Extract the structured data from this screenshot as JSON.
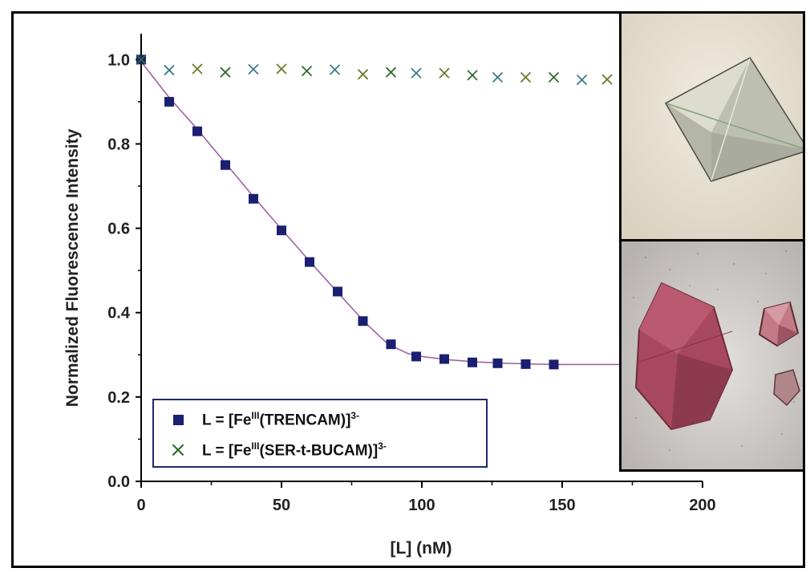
{
  "chart_data": {
    "type": "scatter",
    "xlabel": "[L] (nM)",
    "ylabel": "Normalized Fluorescence Intensity",
    "xlim": [
      0,
      200
    ],
    "ylim": [
      0.0,
      1.05
    ],
    "xticks": [
      "0",
      "50",
      "100",
      "150",
      "200"
    ],
    "yticks": [
      "0.0",
      "0.2",
      "0.4",
      "0.6",
      "0.8",
      "1.0"
    ],
    "legend_position": "bottom-left",
    "series": [
      {
        "legend_prefix": "L = [Fe",
        "legend_sup1": "III",
        "legend_mid": "(TRENCAM)]",
        "legend_sup2": "3-",
        "marker": "square",
        "color": "#1a1f72",
        "x": [
          0,
          10,
          20,
          30,
          40,
          50,
          60,
          70,
          79,
          89,
          98,
          108,
          118,
          127,
          137,
          147
        ],
        "y": [
          1.0,
          0.9,
          0.83,
          0.75,
          0.67,
          0.595,
          0.52,
          0.45,
          0.38,
          0.325,
          0.296,
          0.29,
          0.282,
          0.28,
          0.278,
          0.277
        ]
      },
      {
        "legend_prefix": "L = [Fe",
        "legend_sup1": "III",
        "legend_mid": "(SER-t-BUCAM)]",
        "legend_sup2": "3-",
        "marker": "x",
        "colors": [
          "#2e6b2e",
          "#3a7a8a",
          "#6a7a2a"
        ],
        "x": [
          0,
          10,
          20,
          30,
          40,
          50,
          59,
          69,
          79,
          89,
          98,
          108,
          118,
          127,
          137,
          147,
          157,
          166
        ],
        "y": [
          1.0,
          0.975,
          0.978,
          0.97,
          0.977,
          0.978,
          0.973,
          0.976,
          0.965,
          0.97,
          0.968,
          0.968,
          0.963,
          0.958,
          0.958,
          0.958,
          0.952,
          0.953
        ]
      }
    ],
    "fit_curve": {
      "x": [
        0,
        10,
        20,
        30,
        40,
        50,
        60,
        70,
        80,
        88,
        95,
        100,
        110,
        120,
        130,
        140,
        150,
        160,
        175
      ],
      "y": [
        0.995,
        0.91,
        0.835,
        0.755,
        0.675,
        0.598,
        0.522,
        0.448,
        0.375,
        0.325,
        0.303,
        0.296,
        0.288,
        0.283,
        0.28,
        0.278,
        0.277,
        0.277,
        0.277
      ]
    }
  }
}
